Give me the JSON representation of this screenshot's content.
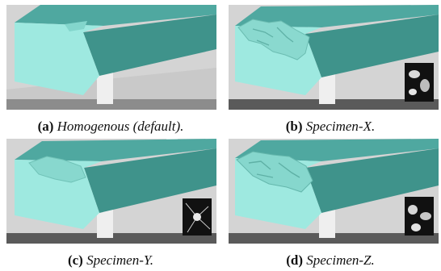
{
  "figure": {
    "panels": [
      {
        "label": "(a)",
        "caption": "Homogenous (default).",
        "inset": "none"
      },
      {
        "label": "(b)",
        "caption": "Specimen-X.",
        "inset": "blob-noise"
      },
      {
        "label": "(c)",
        "caption": "Specimen-Y.",
        "inset": "radial-star"
      },
      {
        "label": "(d)",
        "caption": "Specimen-Z.",
        "inset": "blob-noise"
      }
    ],
    "colors": {
      "beam_front": "#9ee9e0",
      "beam_top": "#4fa8a0",
      "beam_dark": "#3d8f88",
      "background": "#d4d4d4",
      "floor": "#555555",
      "pillar": "#efefef"
    }
  }
}
